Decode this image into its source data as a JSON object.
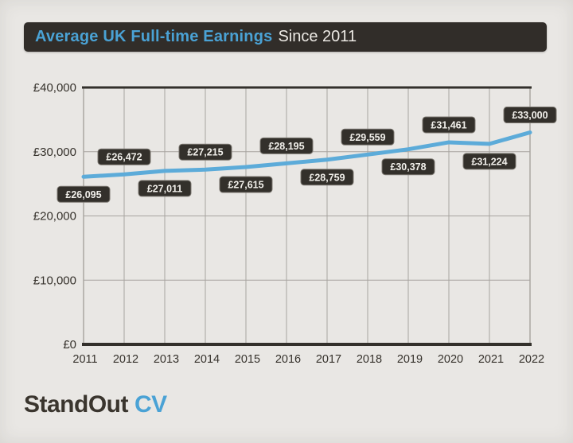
{
  "page": {
    "background_color": "#e9e7e4"
  },
  "header": {
    "title_highlight": "Average UK Full-time Earnings",
    "title_rest": "Since 2011",
    "bar_color": "#312d29",
    "highlight_color": "#4aa2d5",
    "rest_color": "#ece9e4"
  },
  "footer": {
    "brand_primary": "StandOut",
    "brand_secondary": "CV",
    "primary_color": "#3a352e",
    "secondary_color": "#4aa2d5"
  },
  "chart_data": {
    "type": "line",
    "title": "Average UK Full-time Earnings Since 2011",
    "categories": [
      "2011",
      "2012",
      "2013",
      "2014",
      "2015",
      "2016",
      "2017",
      "2018",
      "2019",
      "2020",
      "2021",
      "2022"
    ],
    "values": [
      26095,
      26472,
      27011,
      27215,
      27615,
      28195,
      28759,
      29559,
      30378,
      31461,
      31224,
      33000
    ],
    "point_labels": [
      "£26,095",
      "£26,472",
      "£27,011",
      "£27,215",
      "£27,615",
      "£28,195",
      "£28,759",
      "£29,559",
      "£30,378",
      "£31,461",
      "£31,224",
      "£33,000"
    ],
    "point_label_positions": [
      "below",
      "above",
      "below",
      "above",
      "below",
      "above",
      "below",
      "above",
      "below",
      "above",
      "below",
      "above"
    ],
    "y_ticks": [
      {
        "value": 0,
        "label": "£0"
      },
      {
        "value": 10000,
        "label": "£10,000"
      },
      {
        "value": 20000,
        "label": "£20,000"
      },
      {
        "value": 30000,
        "label": "£30,000"
      },
      {
        "value": 40000,
        "label": "£40,000"
      }
    ],
    "ylim": [
      0,
      40000
    ],
    "xlabel": "",
    "ylabel": "",
    "grid": true,
    "legend": "none",
    "line_color": "#5cabd9",
    "grid_color": "#a7a49f",
    "axis_color": "#33302b",
    "tick_text_color": "#36322c",
    "label_box_color": "#33302b",
    "label_box_border_color": "#7d7972",
    "label_text_color": "#f2f0eb"
  }
}
